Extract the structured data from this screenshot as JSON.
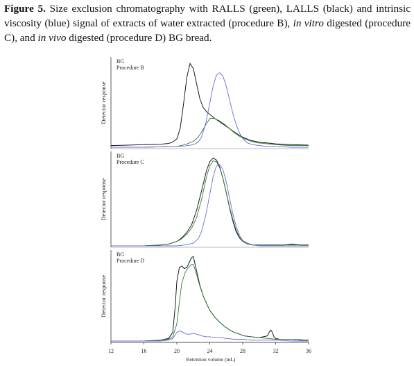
{
  "caption": {
    "fig_label": "Figure 5.",
    "seg1": " Size exclusion chromatography with RALLS (green), LALLS (black) and intrinsic viscosity (blue) signal of extracts of water extracted (procedure B), ",
    "ital1": "in vitro",
    "seg2": " digested (procedure C), and ",
    "ital2": "in vivo",
    "seg3": " digested (procedure D) BG bread."
  },
  "colors": {
    "RALLS": "#2e7d32",
    "LALLS": "#1a1a1a",
    "viscosity": "#6b6bd6",
    "axis": "#333333"
  },
  "chart_data": {
    "type": "line",
    "xlabel": "Retention volume (mL)",
    "xlim": [
      12,
      36
    ],
    "xticks": [
      "12",
      "16",
      "20",
      "24",
      "28",
      "32",
      "36"
    ],
    "ylabels": [
      "Detector response",
      "Detector response",
      "Detector response"
    ],
    "panels": [
      {
        "label_line1": "BG",
        "label_line2": "Procedure B",
        "ylim": [
          0,
          1.05
        ],
        "series": [
          {
            "key": "LALLS",
            "x": [
              12,
              14,
              16,
              18,
              19,
              19.5,
              20,
              20.4,
              20.8,
              21.2,
              21.6,
              22,
              22.4,
              22.8,
              23.2,
              23.6,
              24,
              24.6,
              25.2,
              25.8,
              26.4,
              27,
              27.6,
              28.2,
              29,
              30,
              31,
              32,
              33,
              34,
              35,
              36
            ],
            "y": [
              0.02,
              0.025,
              0.03,
              0.035,
              0.045,
              0.06,
              0.1,
              0.22,
              0.5,
              0.82,
              0.99,
              0.93,
              0.75,
              0.57,
              0.47,
              0.42,
              0.39,
              0.34,
              0.3,
              0.26,
              0.22,
              0.18,
              0.14,
              0.11,
              0.08,
              0.06,
              0.05,
              0.04,
              0.035,
              0.03,
              0.028,
              0.025
            ]
          },
          {
            "key": "RALLS",
            "x": [
              12,
              16,
              20,
              21,
              22,
              22.6,
              23,
              23.6,
              24,
              24.6,
              25.2,
              25.8,
              26.4,
              27,
              27.6,
              28.2,
              29,
              30,
              31,
              32,
              33,
              34,
              36
            ],
            "y": [
              0.0,
              0.0,
              0.01,
              0.03,
              0.07,
              0.12,
              0.18,
              0.28,
              0.34,
              0.34,
              0.31,
              0.27,
              0.22,
              0.17,
              0.13,
              0.1,
              0.07,
              0.05,
              0.04,
              0.03,
              0.025,
              0.02,
              0.02
            ]
          },
          {
            "key": "viscosity",
            "x": [
              12,
              16,
              20,
              21,
              22,
              22.6,
              23,
              23.5,
              24,
              24.4,
              24.8,
              25.2,
              25.6,
              26,
              26.4,
              26.8,
              27.2,
              27.6,
              28,
              28.6,
              29.2,
              30,
              31,
              32,
              34,
              36
            ],
            "y": [
              0.0,
              0.0,
              0.01,
              0.015,
              0.03,
              0.06,
              0.12,
              0.28,
              0.52,
              0.72,
              0.85,
              0.88,
              0.84,
              0.72,
              0.56,
              0.4,
              0.27,
              0.17,
              0.1,
              0.05,
              0.03,
              0.02,
              0.01,
              0.01,
              0.0,
              0.0
            ]
          }
        ]
      },
      {
        "label_line1": "BG",
        "label_line2": "Procedure C",
        "ylim": [
          0,
          1.05
        ],
        "series": [
          {
            "key": "LALLS",
            "x": [
              12,
              16,
              18,
              19,
              20,
              20.6,
              21.2,
              21.8,
              22.4,
              23,
              23.6,
              24,
              24.4,
              24.8,
              25.2,
              25.6,
              26,
              26.4,
              26.8,
              27.2,
              27.6,
              28,
              28.6,
              29.2,
              30,
              31,
              32,
              33,
              34,
              35,
              36
            ],
            "y": [
              0.0,
              0.0,
              0.01,
              0.02,
              0.05,
              0.09,
              0.15,
              0.24,
              0.4,
              0.62,
              0.85,
              0.95,
              0.99,
              0.97,
              0.89,
              0.76,
              0.6,
              0.43,
              0.28,
              0.16,
              0.09,
              0.05,
              0.02,
              0.01,
              0.01,
              0.01,
              0.01,
              0.01,
              0.02,
              0.01,
              0.01
            ]
          },
          {
            "key": "RALLS",
            "x": [
              12,
              16,
              18,
              19,
              20,
              20.6,
              21.2,
              21.8,
              22.4,
              23,
              23.6,
              24,
              24.4,
              24.8,
              25.2,
              25.6,
              26,
              26.4,
              26.8,
              27.2,
              27.6,
              28,
              28.6,
              29.2,
              30,
              32,
              34,
              36
            ],
            "y": [
              0.0,
              0.0,
              0.01,
              0.02,
              0.05,
              0.08,
              0.13,
              0.2,
              0.32,
              0.52,
              0.78,
              0.9,
              0.96,
              0.95,
              0.88,
              0.76,
              0.6,
              0.44,
              0.3,
              0.18,
              0.1,
              0.05,
              0.02,
              0.01,
              0.01,
              0.01,
              0.01,
              0.01
            ]
          },
          {
            "key": "viscosity",
            "x": [
              12,
              16,
              20,
              21,
              22,
              22.6,
              23,
              23.5,
              24,
              24.4,
              24.8,
              25.2,
              25.6,
              26,
              26.4,
              26.8,
              27.2,
              27.6,
              28,
              28.6,
              29.2,
              30,
              32,
              36
            ],
            "y": [
              0.0,
              0.0,
              0.0,
              0.01,
              0.03,
              0.08,
              0.16,
              0.34,
              0.58,
              0.78,
              0.9,
              0.92,
              0.86,
              0.72,
              0.54,
              0.36,
              0.22,
              0.12,
              0.06,
              0.03,
              0.01,
              0.0,
              0.0,
              0.0
            ]
          }
        ]
      },
      {
        "label_line1": "BG",
        "label_line2": "Procedure D",
        "ylim": [
          0,
          1.05
        ],
        "series": [
          {
            "key": "LALLS",
            "x": [
              12,
              16,
              18,
              19,
              19.5,
              19.8,
              20,
              20.3,
              20.6,
              20.9,
              21.2,
              21.5,
              21.8,
              22,
              22.4,
              22.8,
              23.2,
              23.6,
              24,
              24.6,
              25.2,
              25.8,
              26.4,
              27,
              27.6,
              28.2,
              29,
              30,
              30.5,
              31,
              31.2,
              31.4,
              31.6,
              31.8,
              32,
              32.5,
              33,
              34,
              35,
              36
            ],
            "y": [
              0.0,
              0.0,
              0.01,
              0.03,
              0.1,
              0.4,
              0.7,
              0.86,
              0.88,
              0.85,
              0.86,
              0.92,
              0.98,
              0.99,
              0.82,
              0.65,
              0.53,
              0.44,
              0.36,
              0.28,
              0.22,
              0.17,
              0.13,
              0.1,
              0.08,
              0.06,
              0.05,
              0.04,
              0.05,
              0.06,
              0.1,
              0.13,
              0.1,
              0.05,
              0.03,
              0.02,
              0.02,
              0.02,
              0.01,
              0.01
            ]
          },
          {
            "key": "RALLS",
            "x": [
              12,
              16,
              18,
              19,
              19.5,
              20,
              20.3,
              20.6,
              21,
              21.4,
              21.8,
              22,
              22.4,
              22.8,
              23.2,
              23.6,
              24,
              24.6,
              25.2,
              25.8,
              26.4,
              27,
              27.6,
              28.2,
              29,
              30,
              31,
              32,
              34,
              36
            ],
            "y": [
              0.0,
              0.0,
              0.01,
              0.02,
              0.05,
              0.2,
              0.45,
              0.68,
              0.8,
              0.86,
              0.9,
              0.9,
              0.78,
              0.64,
              0.53,
              0.44,
              0.36,
              0.28,
              0.22,
              0.17,
              0.13,
              0.1,
              0.08,
              0.06,
              0.05,
              0.04,
              0.03,
              0.02,
              0.02,
              0.01
            ]
          },
          {
            "key": "viscosity",
            "x": [
              12,
              16,
              18,
              19,
              19.5,
              20,
              20.4,
              20.8,
              21.2,
              21.6,
              22,
              22.4,
              23,
              23.6,
              24,
              24.6,
              25.2,
              26,
              27,
              28,
              29,
              30,
              31,
              32,
              34,
              36
            ],
            "y": [
              0.0,
              0.0,
              0.0,
              0.01,
              0.03,
              0.1,
              0.12,
              0.1,
              0.08,
              0.08,
              0.09,
              0.08,
              0.06,
              0.05,
              0.05,
              0.04,
              0.04,
              0.03,
              0.02,
              0.02,
              0.01,
              0.01,
              0.01,
              0.01,
              0.0,
              0.0
            ]
          }
        ]
      }
    ]
  }
}
